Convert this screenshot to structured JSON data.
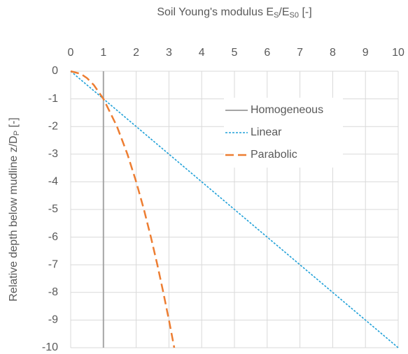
{
  "chart_data": {
    "type": "line",
    "x_label": [
      "Soil Young's modulus E",
      "S",
      "/E",
      "S0",
      " [-]"
    ],
    "y_label": [
      "Relative depth below mudline z/D",
      "P",
      " [-]"
    ],
    "xlim": [
      0,
      10
    ],
    "xticks": [
      0,
      1,
      2,
      3,
      4,
      5,
      6,
      7,
      8,
      9,
      10
    ],
    "ylim": [
      -10,
      0
    ],
    "yticks": [
      0,
      -1,
      -2,
      -3,
      -4,
      -5,
      -6,
      -7,
      -8,
      -9,
      -10
    ],
    "grid": true,
    "legend": "upper right",
    "series": [
      {
        "name": "Homogeneous",
        "color": "#a5a5a5",
        "dash": "solid",
        "x": [
          1,
          1
        ],
        "values": [
          0,
          -10
        ]
      },
      {
        "name": "Linear",
        "color": "#1fa0d8",
        "dash": "dotted",
        "x": [
          0,
          10
        ],
        "values": [
          0,
          -10
        ]
      },
      {
        "name": "Parabolic",
        "color": "#ed7d31",
        "dash": "dashed",
        "x": [
          0,
          0.316,
          0.5,
          0.707,
          1,
          1.414,
          1.732,
          2,
          2.236,
          2.449,
          2.646,
          2.828,
          3,
          3.162
        ],
        "values": [
          0,
          -0.1,
          -0.25,
          -0.5,
          -1,
          -2,
          -3,
          -4,
          -5,
          -6,
          -7,
          -8,
          -9,
          -10
        ]
      }
    ]
  }
}
